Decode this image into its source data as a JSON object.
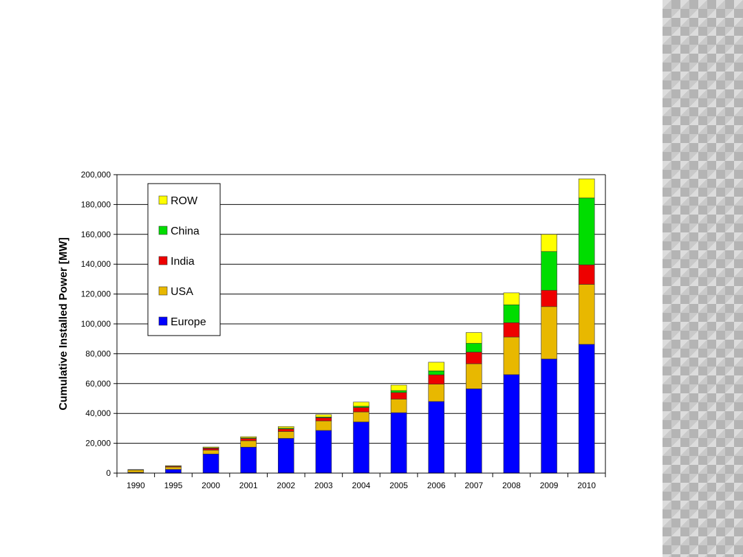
{
  "chart_data": {
    "type": "bar",
    "stacked": true,
    "title": "",
    "xlabel": "",
    "ylabel": "Cumulative Installed Power [MW]",
    "ylim": [
      0,
      200000
    ],
    "yticks": [
      0,
      20000,
      40000,
      60000,
      80000,
      100000,
      120000,
      140000,
      160000,
      180000,
      200000
    ],
    "ytick_labels": [
      "0",
      "20,000",
      "40,000",
      "60,000",
      "80,000",
      "100,000",
      "120,000",
      "140,000",
      "160,000",
      "180,000",
      "200,000"
    ],
    "grid": true,
    "legend_position": "top-left",
    "categories": [
      "1990",
      "1995",
      "2000",
      "2001",
      "2002",
      "2003",
      "2004",
      "2005",
      "2006",
      "2007",
      "2008",
      "2009",
      "2010"
    ],
    "series": [
      {
        "name": "Europe",
        "color": "#0000ff",
        "values": [
          500,
          2500,
          12800,
          17400,
          23300,
          28600,
          34300,
          40500,
          48000,
          56500,
          66000,
          76500,
          86300
        ]
      },
      {
        "name": "USA",
        "color": "#e8b800",
        "values": [
          1600,
          1600,
          2600,
          4300,
          4600,
          6400,
          6700,
          9100,
          11600,
          16800,
          25200,
          35100,
          40200
        ]
      },
      {
        "name": "India",
        "color": "#ee0000",
        "values": [
          0,
          500,
          1200,
          1500,
          1700,
          2100,
          3000,
          4400,
          6300,
          7800,
          9600,
          10900,
          13100
        ]
      },
      {
        "name": "China",
        "color": "#00dd00",
        "values": [
          0,
          0,
          300,
          400,
          500,
          500,
          800,
          1300,
          2600,
          5900,
          12000,
          26000,
          44800
        ]
      },
      {
        "name": "ROW",
        "color": "#ffff00",
        "values": [
          300,
          400,
          600,
          800,
          1100,
          1600,
          2800,
          3700,
          5800,
          7200,
          8000,
          11500,
          12800
        ]
      }
    ],
    "legend_order": [
      "ROW",
      "China",
      "India",
      "USA",
      "Europe"
    ]
  }
}
